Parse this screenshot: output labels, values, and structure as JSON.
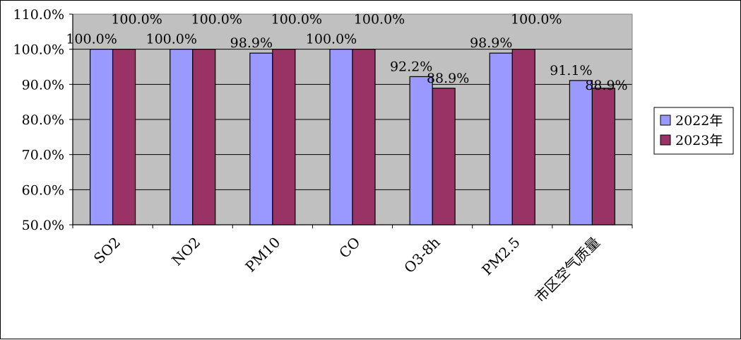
{
  "chart_data": {
    "type": "bar",
    "categories": [
      "SO2",
      "NO2",
      "PM10",
      "CO",
      "O3-8h",
      "PM2.5",
      "市区空气质量"
    ],
    "series": [
      {
        "name": "2022年",
        "values": [
          100.0,
          100.0,
          98.9,
          100.0,
          92.2,
          98.9,
          91.1
        ],
        "labels": [
          "100.0%",
          "100.0%",
          "98.9%",
          "100.0%",
          "92.2%",
          "98.9%",
          "91.1%"
        ],
        "color": "#9999ff"
      },
      {
        "name": "2023年",
        "values": [
          100.0,
          100.0,
          100.0,
          100.0,
          88.9,
          100.0,
          88.9
        ],
        "labels": [
          "100.0%",
          "100.0%",
          "100.0%",
          "100.0%",
          "88.9%",
          "100.0%",
          "88.9%"
        ],
        "color": "#993366"
      }
    ],
    "ylim": [
      50,
      110
    ],
    "yticks": [
      "50.0%",
      "60.0%",
      "70.0%",
      "80.0%",
      "90.0%",
      "100.0%",
      "110.0%"
    ],
    "grid": true,
    "legend": "right",
    "plot_background": "#c0c0c0",
    "gridline_color": "#000000"
  }
}
